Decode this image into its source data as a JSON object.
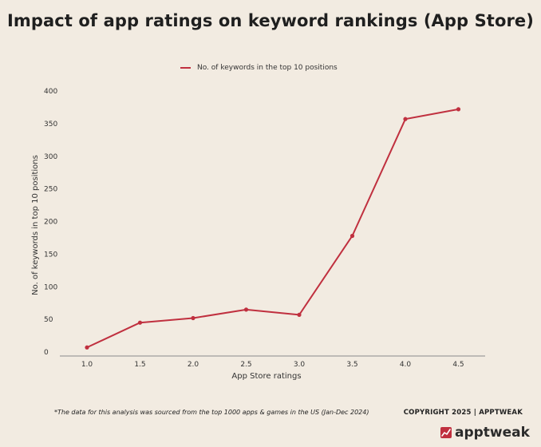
{
  "title": "Impact of app ratings on keyword rankings (App Store)",
  "legend": {
    "label": "No. of keywords in the top 10 positions",
    "color": "#c0303f"
  },
  "footnote": "*The data for this analysis was sourced from the top 1000 apps & games in the US (Jan-Dec 2024)",
  "copyright": "COPYRIGHT 2025 | APPTWEAK",
  "brand": {
    "logo_icon": "chart-trend-icon",
    "name": "apptweak"
  },
  "chart_data": {
    "type": "line",
    "title": "Impact of app ratings on keyword rankings (App Store)",
    "xlabel": "App Store ratings",
    "ylabel": "No. of keywords in top 10 positions",
    "categories": [
      "1.0",
      "1.5",
      "2.0",
      "2.5",
      "3.0",
      "3.5",
      "4.0",
      "4.5"
    ],
    "series": [
      {
        "name": "No. of keywords in the top 10 positions",
        "values": [
          7,
          45,
          52,
          65,
          57,
          178,
          357,
          372
        ],
        "color": "#c0303f"
      }
    ],
    "ylim": [
      0,
      400
    ],
    "yticks": [
      0,
      50,
      100,
      150,
      200,
      250,
      300,
      350,
      400
    ],
    "grid": false,
    "legend_position": "top"
  }
}
